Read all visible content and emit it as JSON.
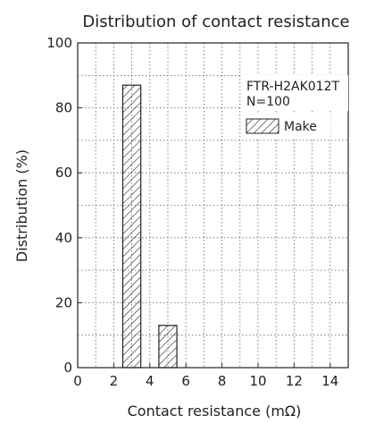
{
  "chart_data": {
    "type": "bar",
    "title": "Distribution of contact resistance",
    "xlabel": "Contact resistance (mΩ)",
    "ylabel": "Distribution (%)",
    "xlim": [
      0,
      15
    ],
    "ylim": [
      0,
      100
    ],
    "xticks": [
      0,
      2,
      4,
      6,
      8,
      10,
      12,
      14
    ],
    "yticks": [
      0,
      20,
      40,
      60,
      80,
      100
    ],
    "grid": "dotted",
    "legend_position": "top-right",
    "annotation_lines": [
      "FTR-H2AK012T",
      "N=100"
    ],
    "series": [
      {
        "name": "Make",
        "fill": "diagonal-hatch",
        "bars": [
          {
            "x_start": 2.5,
            "x_end": 3.5,
            "value": 87
          },
          {
            "x_start": 4.5,
            "x_end": 5.5,
            "value": 13
          }
        ]
      }
    ]
  }
}
